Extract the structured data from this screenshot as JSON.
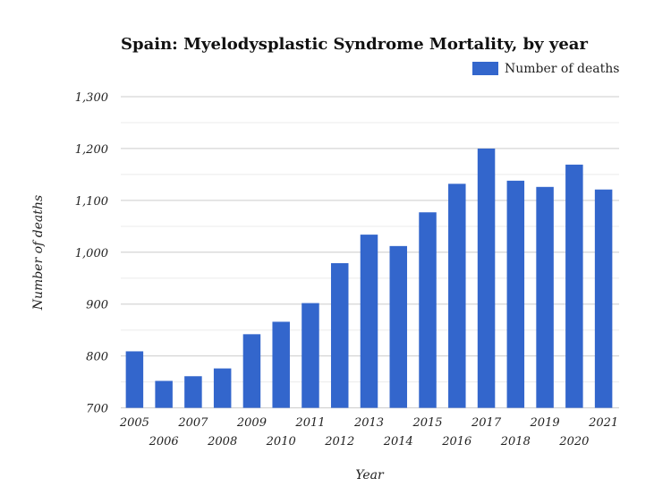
{
  "chart_data": {
    "type": "bar",
    "title": "Spain: Myelodysplastic Syndrome Mortality, by year",
    "xlabel": "Year",
    "ylabel": "Number of deaths",
    "ylim": [
      700,
      1300
    ],
    "yticks": [
      700,
      800,
      900,
      1000,
      1100,
      1200,
      1300
    ],
    "ytick_labels": [
      "700",
      "800",
      "900",
      "1,000",
      "1,100",
      "1,200",
      "1,300"
    ],
    "grid": true,
    "legend_position": "top-right",
    "categories": [
      "2005",
      "2006",
      "2007",
      "2008",
      "2009",
      "2010",
      "2011",
      "2012",
      "2013",
      "2014",
      "2015",
      "2016",
      "2017",
      "2018",
      "2019",
      "2020",
      "2021"
    ],
    "series": [
      {
        "name": "Number of deaths",
        "color": "#3366cc",
        "values": [
          809,
          752,
          761,
          776,
          842,
          866,
          902,
          979,
          1034,
          1012,
          1077,
          1132,
          1200,
          1138,
          1126,
          1169,
          1121
        ]
      }
    ]
  }
}
